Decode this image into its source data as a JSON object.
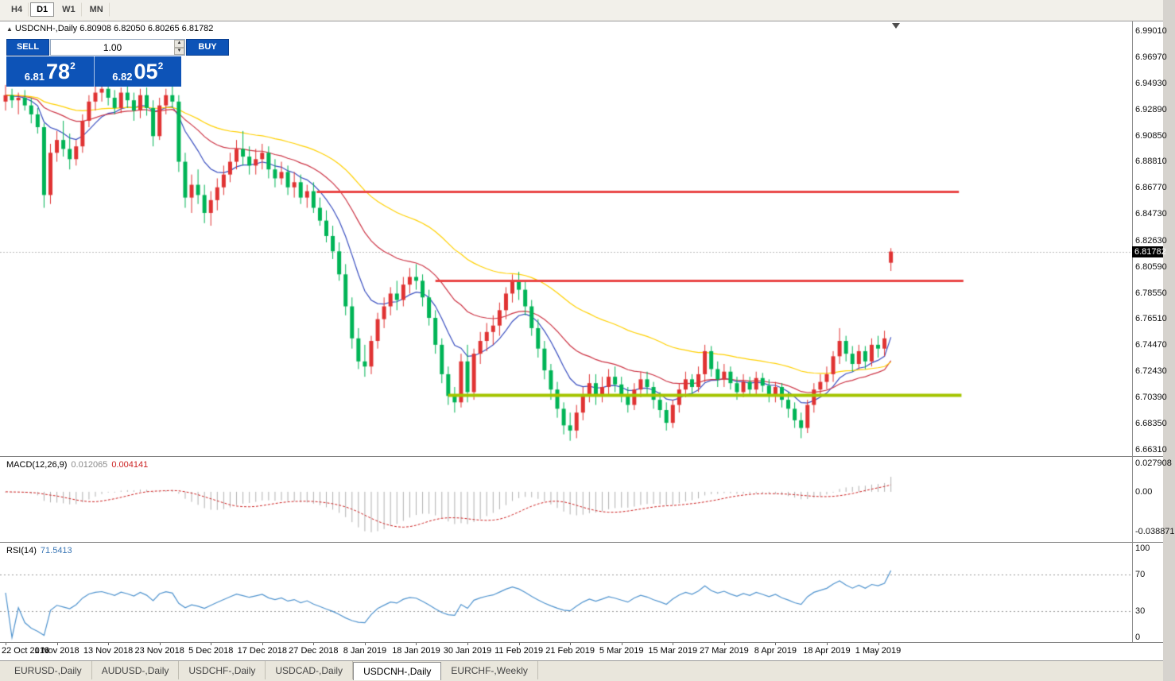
{
  "toolbar": {
    "timeframes": [
      {
        "label": "H4"
      },
      {
        "label": "D1"
      },
      {
        "label": "W1"
      },
      {
        "label": "MN"
      }
    ],
    "active_timeframe": "D1"
  },
  "chart": {
    "symbol_header": "USDCNH-,Daily 6.80908 6.82050 6.80265 6.81782",
    "trade_panel": {
      "sell_label": "SELL",
      "buy_label": "BUY",
      "volume": "1.00",
      "sell_price": {
        "small": "6.81",
        "big": "78",
        "sup": "2"
      },
      "buy_price": {
        "small": "6.82",
        "big": "05",
        "sup": "2"
      }
    },
    "price_axis": {
      "ticks": [
        "6.99010",
        "6.96970",
        "6.94930",
        "6.92890",
        "6.90850",
        "6.88810",
        "6.86770",
        "6.84730",
        "6.82630",
        "6.80590",
        "6.78550",
        "6.76510",
        "6.74470",
        "6.72430",
        "6.70390",
        "6.68350",
        "6.66310"
      ],
      "current": "6.81782"
    },
    "macd": {
      "label": "MACD(12,26,9)",
      "value_main": "0.012065",
      "value_signal": "0.004141",
      "axis_ticks": [
        "0.027908",
        "0.00",
        "-0.038871"
      ]
    },
    "rsi": {
      "label": "RSI(14)",
      "value": "71.5413",
      "axis_ticks": [
        "100",
        "70",
        "30",
        "0"
      ]
    }
  },
  "tabs": [
    {
      "label": "EURUSD-,Daily"
    },
    {
      "label": "AUDUSD-,Daily"
    },
    {
      "label": "USDCHF-,Daily"
    },
    {
      "label": "USDCAD-,Daily"
    },
    {
      "label": "USDCNH-,Daily"
    },
    {
      "label": "EURCHF-,Weekly"
    }
  ],
  "active_tab": "USDCNH-,Daily",
  "chart_data": {
    "type": "candlestick",
    "symbol": "USDCNH-",
    "timeframe": "Daily",
    "bid": 6.81782,
    "last_bar": {
      "open": 6.80908,
      "high": 6.8205,
      "low": 6.80265,
      "close": 6.81782
    },
    "ylim": [
      6.658,
      6.9976
    ],
    "colors": {
      "candle_up": "#e03333",
      "candle_down": "#00b456",
      "ma_fast": "#3a4fc0",
      "ma_mid": "#cc3344",
      "ma_slow": "#ffd000",
      "macd_hist": "#b0b0b0",
      "macd_signal": "#cc2222",
      "rsi_line": "#4f93ce",
      "trade_panel_blue": "#0d53b7",
      "bid_line": "#b9b9b9"
    },
    "moving_averages": [
      {
        "period": 10,
        "color": "#3a4fc0"
      },
      {
        "period": 25,
        "color": "#cc3344"
      },
      {
        "period": 50,
        "color": "#ffd000"
      }
    ],
    "lines": [
      {
        "name": "resistance-1",
        "price": 6.865,
        "from_bar": 48.5,
        "to_bar": 148.6,
        "color": "#e94444",
        "width": 3
      },
      {
        "name": "resistance-2",
        "price": 6.7955,
        "from_bar": 67.0,
        "to_bar": 149.3,
        "color": "#e94444",
        "width": 3
      },
      {
        "name": "support",
        "price": 6.706,
        "from_bar": 69.0,
        "to_bar": 149.0,
        "color": "#a4c400",
        "width": 4
      }
    ],
    "indicators": {
      "macd": {
        "fast": 12,
        "slow": 26,
        "signal": 9,
        "current_main": 0.012065,
        "current_signal": 0.004141,
        "axis_max": 0.027908,
        "axis_min": -0.038871
      },
      "rsi": {
        "period": 14,
        "current": 71.5413,
        "levels": [
          70,
          30
        ]
      }
    },
    "date_labels": [
      {
        "text": "22 Oct 2018",
        "bar": 0
      },
      {
        "text": "1 Nov 2018",
        "bar": 8
      },
      {
        "text": "13 Nov 2018",
        "bar": 16
      },
      {
        "text": "23 Nov 2018",
        "bar": 24
      },
      {
        "text": "5 Dec 2018",
        "bar": 32
      },
      {
        "text": "17 Dec 2018",
        "bar": 40
      },
      {
        "text": "27 Dec 2018",
        "bar": 48
      },
      {
        "text": "8 Jan 2019",
        "bar": 56
      },
      {
        "text": "18 Jan 2019",
        "bar": 64
      },
      {
        "text": "30 Jan 2019",
        "bar": 72
      },
      {
        "text": "11 Feb 2019",
        "bar": 80
      },
      {
        "text": "21 Feb 2019",
        "bar": 88
      },
      {
        "text": "5 Mar 2019",
        "bar": 96
      },
      {
        "text": "15 Mar 2019",
        "bar": 104
      },
      {
        "text": "27 Mar 2019",
        "bar": 112
      },
      {
        "text": "8 Apr 2019",
        "bar": 120
      },
      {
        "text": "18 Apr 2019",
        "bar": 128
      },
      {
        "text": "1 May 2019",
        "bar": 136
      }
    ],
    "ohlc": [
      [
        6.935,
        6.948,
        6.928,
        6.94
      ],
      [
        6.94,
        6.945,
        6.93,
        6.936
      ],
      [
        6.936,
        6.942,
        6.925,
        6.938
      ],
      [
        6.938,
        6.944,
        6.928,
        6.932
      ],
      [
        6.932,
        6.938,
        6.918,
        6.925
      ],
      [
        6.925,
        6.93,
        6.91,
        6.915
      ],
      [
        6.915,
        6.918,
        6.852,
        6.862
      ],
      [
        6.862,
        6.902,
        6.855,
        6.895
      ],
      [
        6.895,
        6.912,
        6.888,
        6.905
      ],
      [
        6.905,
        6.92,
        6.892,
        6.898
      ],
      [
        6.898,
        6.91,
        6.882,
        6.89
      ],
      [
        6.89,
        6.905,
        6.885,
        6.9
      ],
      [
        6.9,
        6.925,
        6.895,
        6.92
      ],
      [
        6.92,
        6.94,
        6.915,
        6.935
      ],
      [
        6.935,
        6.948,
        6.928,
        6.942
      ],
      [
        6.942,
        6.95,
        6.935,
        6.945
      ],
      [
        6.945,
        6.95,
        6.932,
        6.938
      ],
      [
        6.938,
        6.944,
        6.925,
        6.93
      ],
      [
        6.93,
        6.946,
        6.926,
        6.942
      ],
      [
        6.942,
        6.948,
        6.93,
        6.936
      ],
      [
        6.936,
        6.942,
        6.92,
        6.928
      ],
      [
        6.928,
        6.945,
        6.922,
        6.94
      ],
      [
        6.94,
        6.946,
        6.924,
        6.93
      ],
      [
        6.93,
        6.936,
        6.9,
        6.908
      ],
      [
        6.908,
        6.938,
        6.905,
        6.932
      ],
      [
        6.932,
        6.945,
        6.925,
        6.94
      ],
      [
        6.94,
        6.948,
        6.93,
        6.935
      ],
      [
        6.935,
        6.94,
        6.88,
        6.888
      ],
      [
        6.888,
        6.895,
        6.852,
        6.86
      ],
      [
        6.86,
        6.878,
        6.848,
        6.87
      ],
      [
        6.87,
        6.882,
        6.855,
        6.862
      ],
      [
        6.862,
        6.87,
        6.84,
        6.848
      ],
      [
        6.848,
        6.865,
        6.838,
        6.858
      ],
      [
        6.858,
        6.875,
        6.85,
        6.868
      ],
      [
        6.868,
        6.885,
        6.862,
        6.878
      ],
      [
        6.878,
        6.895,
        6.872,
        6.888
      ],
      [
        6.888,
        6.905,
        6.882,
        6.898
      ],
      [
        6.898,
        6.912,
        6.885,
        6.892
      ],
      [
        6.892,
        6.9,
        6.878,
        6.885
      ],
      [
        6.885,
        6.898,
        6.878,
        6.89
      ],
      [
        6.89,
        6.902,
        6.882,
        6.895
      ],
      [
        6.895,
        6.9,
        6.875,
        6.882
      ],
      [
        6.882,
        6.89,
        6.868,
        6.875
      ],
      [
        6.875,
        6.888,
        6.87,
        6.88
      ],
      [
        6.88,
        6.885,
        6.862,
        6.868
      ],
      [
        6.868,
        6.88,
        6.86,
        6.872
      ],
      [
        6.872,
        6.878,
        6.855,
        6.86
      ],
      [
        6.86,
        6.87,
        6.852,
        6.865
      ],
      [
        6.865,
        6.872,
        6.848,
        6.852
      ],
      [
        6.852,
        6.86,
        6.838,
        6.842
      ],
      [
        6.842,
        6.85,
        6.825,
        6.83
      ],
      [
        6.83,
        6.838,
        6.812,
        6.818
      ],
      [
        6.818,
        6.825,
        6.795,
        6.8
      ],
      [
        6.8,
        6.808,
        6.768,
        6.775
      ],
      [
        6.775,
        6.782,
        6.742,
        6.75
      ],
      [
        6.75,
        6.758,
        6.726,
        6.732
      ],
      [
        6.732,
        6.745,
        6.72,
        6.728
      ],
      [
        6.728,
        6.752,
        6.722,
        6.748
      ],
      [
        6.748,
        6.77,
        6.742,
        6.765
      ],
      [
        6.765,
        6.782,
        6.758,
        6.775
      ],
      [
        6.775,
        6.79,
        6.768,
        6.785
      ],
      [
        6.785,
        6.795,
        6.772,
        6.78
      ],
      [
        6.78,
        6.798,
        6.775,
        6.792
      ],
      [
        6.792,
        6.805,
        6.785,
        6.798
      ],
      [
        6.798,
        6.808,
        6.788,
        6.795
      ],
      [
        6.795,
        6.8,
        6.775,
        6.782
      ],
      [
        6.782,
        6.788,
        6.76,
        6.766
      ],
      [
        6.766,
        6.772,
        6.738,
        6.745
      ],
      [
        6.745,
        6.75,
        6.715,
        6.722
      ],
      [
        6.722,
        6.728,
        6.698,
        6.705
      ],
      [
        6.705,
        6.712,
        6.692,
        6.7
      ],
      [
        6.7,
        6.738,
        6.696,
        6.732
      ],
      [
        6.732,
        6.745,
        6.7,
        6.708
      ],
      [
        6.708,
        6.742,
        6.702,
        6.738
      ],
      [
        6.738,
        6.755,
        6.73,
        6.748
      ],
      [
        6.748,
        6.762,
        6.74,
        6.755
      ],
      [
        6.755,
        6.768,
        6.745,
        6.76
      ],
      [
        6.76,
        6.778,
        6.752,
        6.772
      ],
      [
        6.772,
        6.79,
        6.765,
        6.785
      ],
      [
        6.785,
        6.8,
        6.778,
        6.795
      ],
      [
        6.795,
        6.802,
        6.78,
        6.788
      ],
      [
        6.788,
        6.795,
        6.768,
        6.775
      ],
      [
        6.775,
        6.78,
        6.752,
        6.758
      ],
      [
        6.758,
        6.765,
        6.735,
        6.742
      ],
      [
        6.742,
        6.748,
        6.718,
        6.725
      ],
      [
        6.725,
        6.73,
        6.702,
        6.71
      ],
      [
        6.71,
        6.716,
        6.688,
        6.695
      ],
      [
        6.695,
        6.7,
        6.675,
        6.682
      ],
      [
        6.682,
        6.692,
        6.67,
        6.678
      ],
      [
        6.678,
        6.698,
        6.672,
        6.692
      ],
      [
        6.692,
        6.712,
        6.686,
        6.705
      ],
      [
        6.705,
        6.722,
        6.7,
        6.715
      ],
      [
        6.715,
        6.722,
        6.698,
        6.705
      ],
      [
        6.705,
        6.72,
        6.7,
        6.712
      ],
      [
        6.712,
        6.726,
        6.705,
        6.72
      ],
      [
        6.72,
        6.728,
        6.708,
        6.714
      ],
      [
        6.714,
        6.72,
        6.7,
        6.706
      ],
      [
        6.706,
        6.712,
        6.692,
        6.698
      ],
      [
        6.698,
        6.715,
        6.694,
        6.71
      ],
      [
        6.71,
        6.724,
        6.704,
        6.718
      ],
      [
        6.718,
        6.724,
        6.706,
        6.712
      ],
      [
        6.712,
        6.716,
        6.695,
        6.702
      ],
      [
        6.702,
        6.708,
        6.688,
        6.694
      ],
      [
        6.694,
        6.7,
        6.678,
        6.684
      ],
      [
        6.684,
        6.702,
        6.68,
        6.698
      ],
      [
        6.698,
        6.715,
        6.692,
        6.71
      ],
      [
        6.71,
        6.724,
        6.704,
        6.718
      ],
      [
        6.718,
        6.722,
        6.705,
        6.712
      ],
      [
        6.712,
        6.728,
        6.708,
        6.722
      ],
      [
        6.722,
        6.745,
        6.716,
        6.74
      ],
      [
        6.74,
        6.744,
        6.72,
        6.726
      ],
      [
        6.726,
        6.732,
        6.712,
        6.718
      ],
      [
        6.718,
        6.73,
        6.712,
        6.724
      ],
      [
        6.724,
        6.728,
        6.71,
        6.715
      ],
      [
        6.715,
        6.72,
        6.702,
        6.708
      ],
      [
        6.708,
        6.722,
        6.704,
        6.716
      ],
      [
        6.716,
        6.72,
        6.705,
        6.71
      ],
      [
        6.71,
        6.724,
        6.706,
        6.719
      ],
      [
        6.719,
        6.723,
        6.708,
        6.713
      ],
      [
        6.713,
        6.718,
        6.7,
        6.706
      ],
      [
        6.706,
        6.716,
        6.7,
        6.712
      ],
      [
        6.712,
        6.715,
        6.696,
        6.702
      ],
      [
        6.702,
        6.708,
        6.688,
        6.695
      ],
      [
        6.695,
        6.7,
        6.68,
        6.686
      ],
      [
        6.686,
        6.692,
        6.672,
        6.68
      ],
      [
        6.68,
        6.702,
        6.676,
        6.698
      ],
      [
        6.698,
        6.715,
        6.692,
        6.71
      ],
      [
        6.71,
        6.722,
        6.704,
        6.716
      ],
      [
        6.716,
        6.728,
        6.71,
        6.722
      ],
      [
        6.722,
        6.74,
        6.716,
        6.736
      ],
      [
        6.736,
        6.758,
        6.73,
        6.748
      ],
      [
        6.748,
        6.752,
        6.732,
        6.738
      ],
      [
        6.738,
        6.744,
        6.724,
        6.73
      ],
      [
        6.73,
        6.745,
        6.726,
        6.74
      ],
      [
        6.74,
        6.744,
        6.726,
        6.732
      ],
      [
        6.732,
        6.75,
        6.728,
        6.745
      ],
      [
        6.745,
        6.752,
        6.735,
        6.742
      ],
      [
        6.742,
        6.756,
        6.736,
        6.75
      ],
      [
        6.80908,
        6.8205,
        6.80265,
        6.81782
      ]
    ]
  }
}
